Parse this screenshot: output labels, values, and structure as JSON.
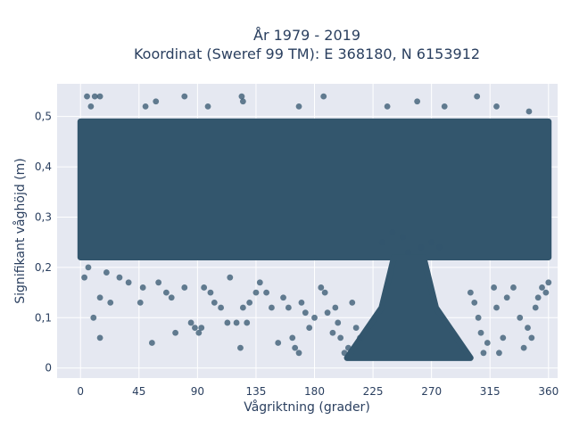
{
  "chart_data": {
    "type": "scatter",
    "title_line1": "År 1979 - 2019",
    "title_line2": "Koordinat (Sweref 99 TM): E 368180, N 6153912",
    "xlabel": "Vågriktning (grader)",
    "ylabel": "Signifikant våghöjd (m)",
    "xlim": [
      -18,
      367
    ],
    "ylim": [
      -0.02,
      0.565
    ],
    "x_ticks": [
      0,
      45,
      90,
      135,
      180,
      225,
      270,
      315,
      360
    ],
    "x_tick_labels": [
      "0",
      "45",
      "90",
      "135",
      "180",
      "225",
      "270",
      "315",
      "360"
    ],
    "y_ticks": [
      0,
      0.1,
      0.2,
      0.3,
      0.4,
      0.5
    ],
    "y_tick_labels": [
      "0",
      "0,1",
      "0,2",
      "0,3",
      "0,4",
      "0,5"
    ],
    "grid": true,
    "marker_color": "#33566d",
    "plot_background": "#e5e8f1",
    "dense_regions": [
      {
        "x": [
          0,
          360
        ],
        "y": [
          0.22,
          0.49
        ]
      },
      {
        "x": [
          205,
          300
        ],
        "y": [
          0.02,
          0.22
        ]
      }
    ],
    "points": [
      [
        5,
        0.54
      ],
      [
        11,
        0.54
      ],
      [
        15,
        0.54
      ],
      [
        58,
        0.53
      ],
      [
        80,
        0.54
      ],
      [
        124,
        0.54
      ],
      [
        125,
        0.53
      ],
      [
        187,
        0.54
      ],
      [
        259,
        0.53
      ],
      [
        305,
        0.54
      ],
      [
        8,
        0.52
      ],
      [
        50,
        0.52
      ],
      [
        98,
        0.52
      ],
      [
        168,
        0.52
      ],
      [
        236,
        0.52
      ],
      [
        280,
        0.52
      ],
      [
        320,
        0.52
      ],
      [
        345,
        0.51
      ],
      [
        3,
        0.18
      ],
      [
        6,
        0.2
      ],
      [
        15,
        0.14
      ],
      [
        15,
        0.06
      ],
      [
        10,
        0.1
      ],
      [
        20,
        0.19
      ],
      [
        23,
        0.13
      ],
      [
        30,
        0.18
      ],
      [
        37,
        0.17
      ],
      [
        46,
        0.13
      ],
      [
        48,
        0.16
      ],
      [
        55,
        0.05
      ],
      [
        60,
        0.17
      ],
      [
        66,
        0.15
      ],
      [
        70,
        0.14
      ],
      [
        73,
        0.07
      ],
      [
        80,
        0.16
      ],
      [
        85,
        0.09
      ],
      [
        88,
        0.08
      ],
      [
        91,
        0.07
      ],
      [
        93,
        0.08
      ],
      [
        95,
        0.16
      ],
      [
        100,
        0.15
      ],
      [
        103,
        0.13
      ],
      [
        108,
        0.12
      ],
      [
        113,
        0.09
      ],
      [
        115,
        0.18
      ],
      [
        120,
        0.09
      ],
      [
        123,
        0.04
      ],
      [
        125,
        0.12
      ],
      [
        128,
        0.09
      ],
      [
        130,
        0.13
      ],
      [
        135,
        0.15
      ],
      [
        138,
        0.17
      ],
      [
        143,
        0.15
      ],
      [
        147,
        0.12
      ],
      [
        152,
        0.05
      ],
      [
        156,
        0.14
      ],
      [
        160,
        0.12
      ],
      [
        163,
        0.06
      ],
      [
        165,
        0.04
      ],
      [
        168,
        0.03
      ],
      [
        170,
        0.13
      ],
      [
        173,
        0.11
      ],
      [
        176,
        0.08
      ],
      [
        180,
        0.1
      ],
      [
        185,
        0.16
      ],
      [
        188,
        0.15
      ],
      [
        190,
        0.11
      ],
      [
        194,
        0.07
      ],
      [
        196,
        0.12
      ],
      [
        198,
        0.09
      ],
      [
        200,
        0.06
      ],
      [
        203,
        0.03
      ],
      [
        206,
        0.04
      ],
      [
        209,
        0.13
      ],
      [
        212,
        0.08
      ],
      [
        215,
        0.06
      ],
      [
        300,
        0.15
      ],
      [
        303,
        0.13
      ],
      [
        306,
        0.1
      ],
      [
        308,
        0.07
      ],
      [
        310,
        0.03
      ],
      [
        313,
        0.05
      ],
      [
        318,
        0.16
      ],
      [
        320,
        0.12
      ],
      [
        322,
        0.03
      ],
      [
        325,
        0.06
      ],
      [
        328,
        0.14
      ],
      [
        333,
        0.16
      ],
      [
        338,
        0.1
      ],
      [
        341,
        0.04
      ],
      [
        344,
        0.08
      ],
      [
        347,
        0.06
      ],
      [
        350,
        0.12
      ],
      [
        352,
        0.14
      ],
      [
        355,
        0.16
      ],
      [
        358,
        0.15
      ],
      [
        360,
        0.17
      ],
      [
        232,
        0.25
      ],
      [
        240,
        0.27
      ],
      [
        248,
        0.26
      ],
      [
        252,
        0.23
      ],
      [
        262,
        0.24
      ],
      [
        270,
        0.25
      ],
      [
        276,
        0.24
      ]
    ]
  }
}
